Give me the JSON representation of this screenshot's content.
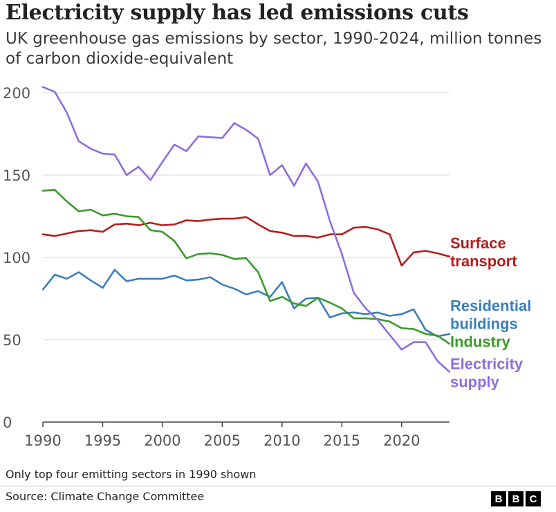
{
  "header": {
    "title": "Electricity supply has led emissions cuts",
    "subtitle": "UK greenhouse gas emissions by sector, 1990-2024, million tonnes of carbon dioxide-equivalent"
  },
  "footer": {
    "note": "Only top four emitting sectors in 1990 shown",
    "source": "Source: Climate Change Committee",
    "logo": [
      "B",
      "B",
      "C"
    ]
  },
  "chart_data": {
    "type": "line",
    "title": "Electricity supply has led emissions cuts",
    "subtitle": "UK greenhouse gas emissions by sector, 1990-2024, million tonnes of carbon dioxide-equivalent",
    "xlabel": "",
    "ylabel": "",
    "xlim": [
      1990,
      2024
    ],
    "ylim": [
      0,
      200
    ],
    "xticks": [
      1990,
      1995,
      2000,
      2005,
      2010,
      2015,
      2020
    ],
    "yticks": [
      0,
      50,
      100,
      150,
      200
    ],
    "grid": "horizontal",
    "legend": "direct labels at right end of lines",
    "x": [
      1990,
      1991,
      1992,
      1993,
      1994,
      1995,
      1996,
      1997,
      1998,
      1999,
      2000,
      2001,
      2002,
      2003,
      2004,
      2005,
      2006,
      2007,
      2008,
      2009,
      2010,
      2011,
      2012,
      2013,
      2014,
      2015,
      2016,
      2017,
      2018,
      2019,
      2020,
      2021,
      2022,
      2023,
      2024
    ],
    "series": [
      {
        "name": "Surface transport",
        "label_lines": [
          "Surface",
          "transport"
        ],
        "color": "#b41e1e",
        "values": [
          114,
          113,
          114.5,
          116,
          116.5,
          115.5,
          120,
          120.5,
          119.5,
          121,
          119.5,
          120,
          122.5,
          122,
          123,
          123.5,
          123.5,
          124.5,
          120,
          116,
          115,
          113,
          113,
          112,
          114,
          114,
          118,
          118.5,
          117,
          114,
          95,
          103,
          104,
          102.5,
          100.5
        ]
      },
      {
        "name": "Residential buildings",
        "label_lines": [
          "Residential",
          "buildings"
        ],
        "color": "#3a7fbb",
        "values": [
          80.5,
          89.5,
          87,
          91,
          86,
          81.5,
          92.5,
          85.5,
          87,
          87,
          87,
          89,
          86,
          86.5,
          88,
          83.5,
          81,
          77.5,
          79.5,
          76,
          85,
          69,
          75,
          75.5,
          63.5,
          66,
          66.5,
          65.5,
          66.5,
          64.5,
          65.5,
          68.5,
          56,
          52,
          53.5
        ]
      },
      {
        "name": "Industry",
        "label_lines": [
          "Industry"
        ],
        "color": "#3a9a2a",
        "values": [
          140.5,
          141,
          134,
          128,
          129,
          125.5,
          126.5,
          125,
          124.5,
          116.5,
          115.5,
          110,
          99.5,
          102,
          102.5,
          101.5,
          99,
          99.5,
          91,
          73.5,
          76,
          72,
          70.5,
          75.5,
          72.5,
          69,
          63,
          63,
          62.5,
          61,
          57,
          56.5,
          53.5,
          52.5,
          47.5
        ]
      },
      {
        "name": "Electricity supply",
        "label_lines": [
          "Electricity",
          "supply"
        ],
        "color": "#8b6ee0",
        "values": [
          203.5,
          200.5,
          188,
          170.5,
          166,
          163,
          162.5,
          150,
          155,
          147,
          158,
          168.5,
          164.5,
          173.5,
          173,
          172.5,
          181.5,
          177.5,
          172,
          150,
          156,
          143.5,
          157,
          146,
          122,
          102,
          78.5,
          69,
          62,
          53,
          44,
          48.5,
          48.5,
          37,
          30.5
        ]
      }
    ]
  }
}
